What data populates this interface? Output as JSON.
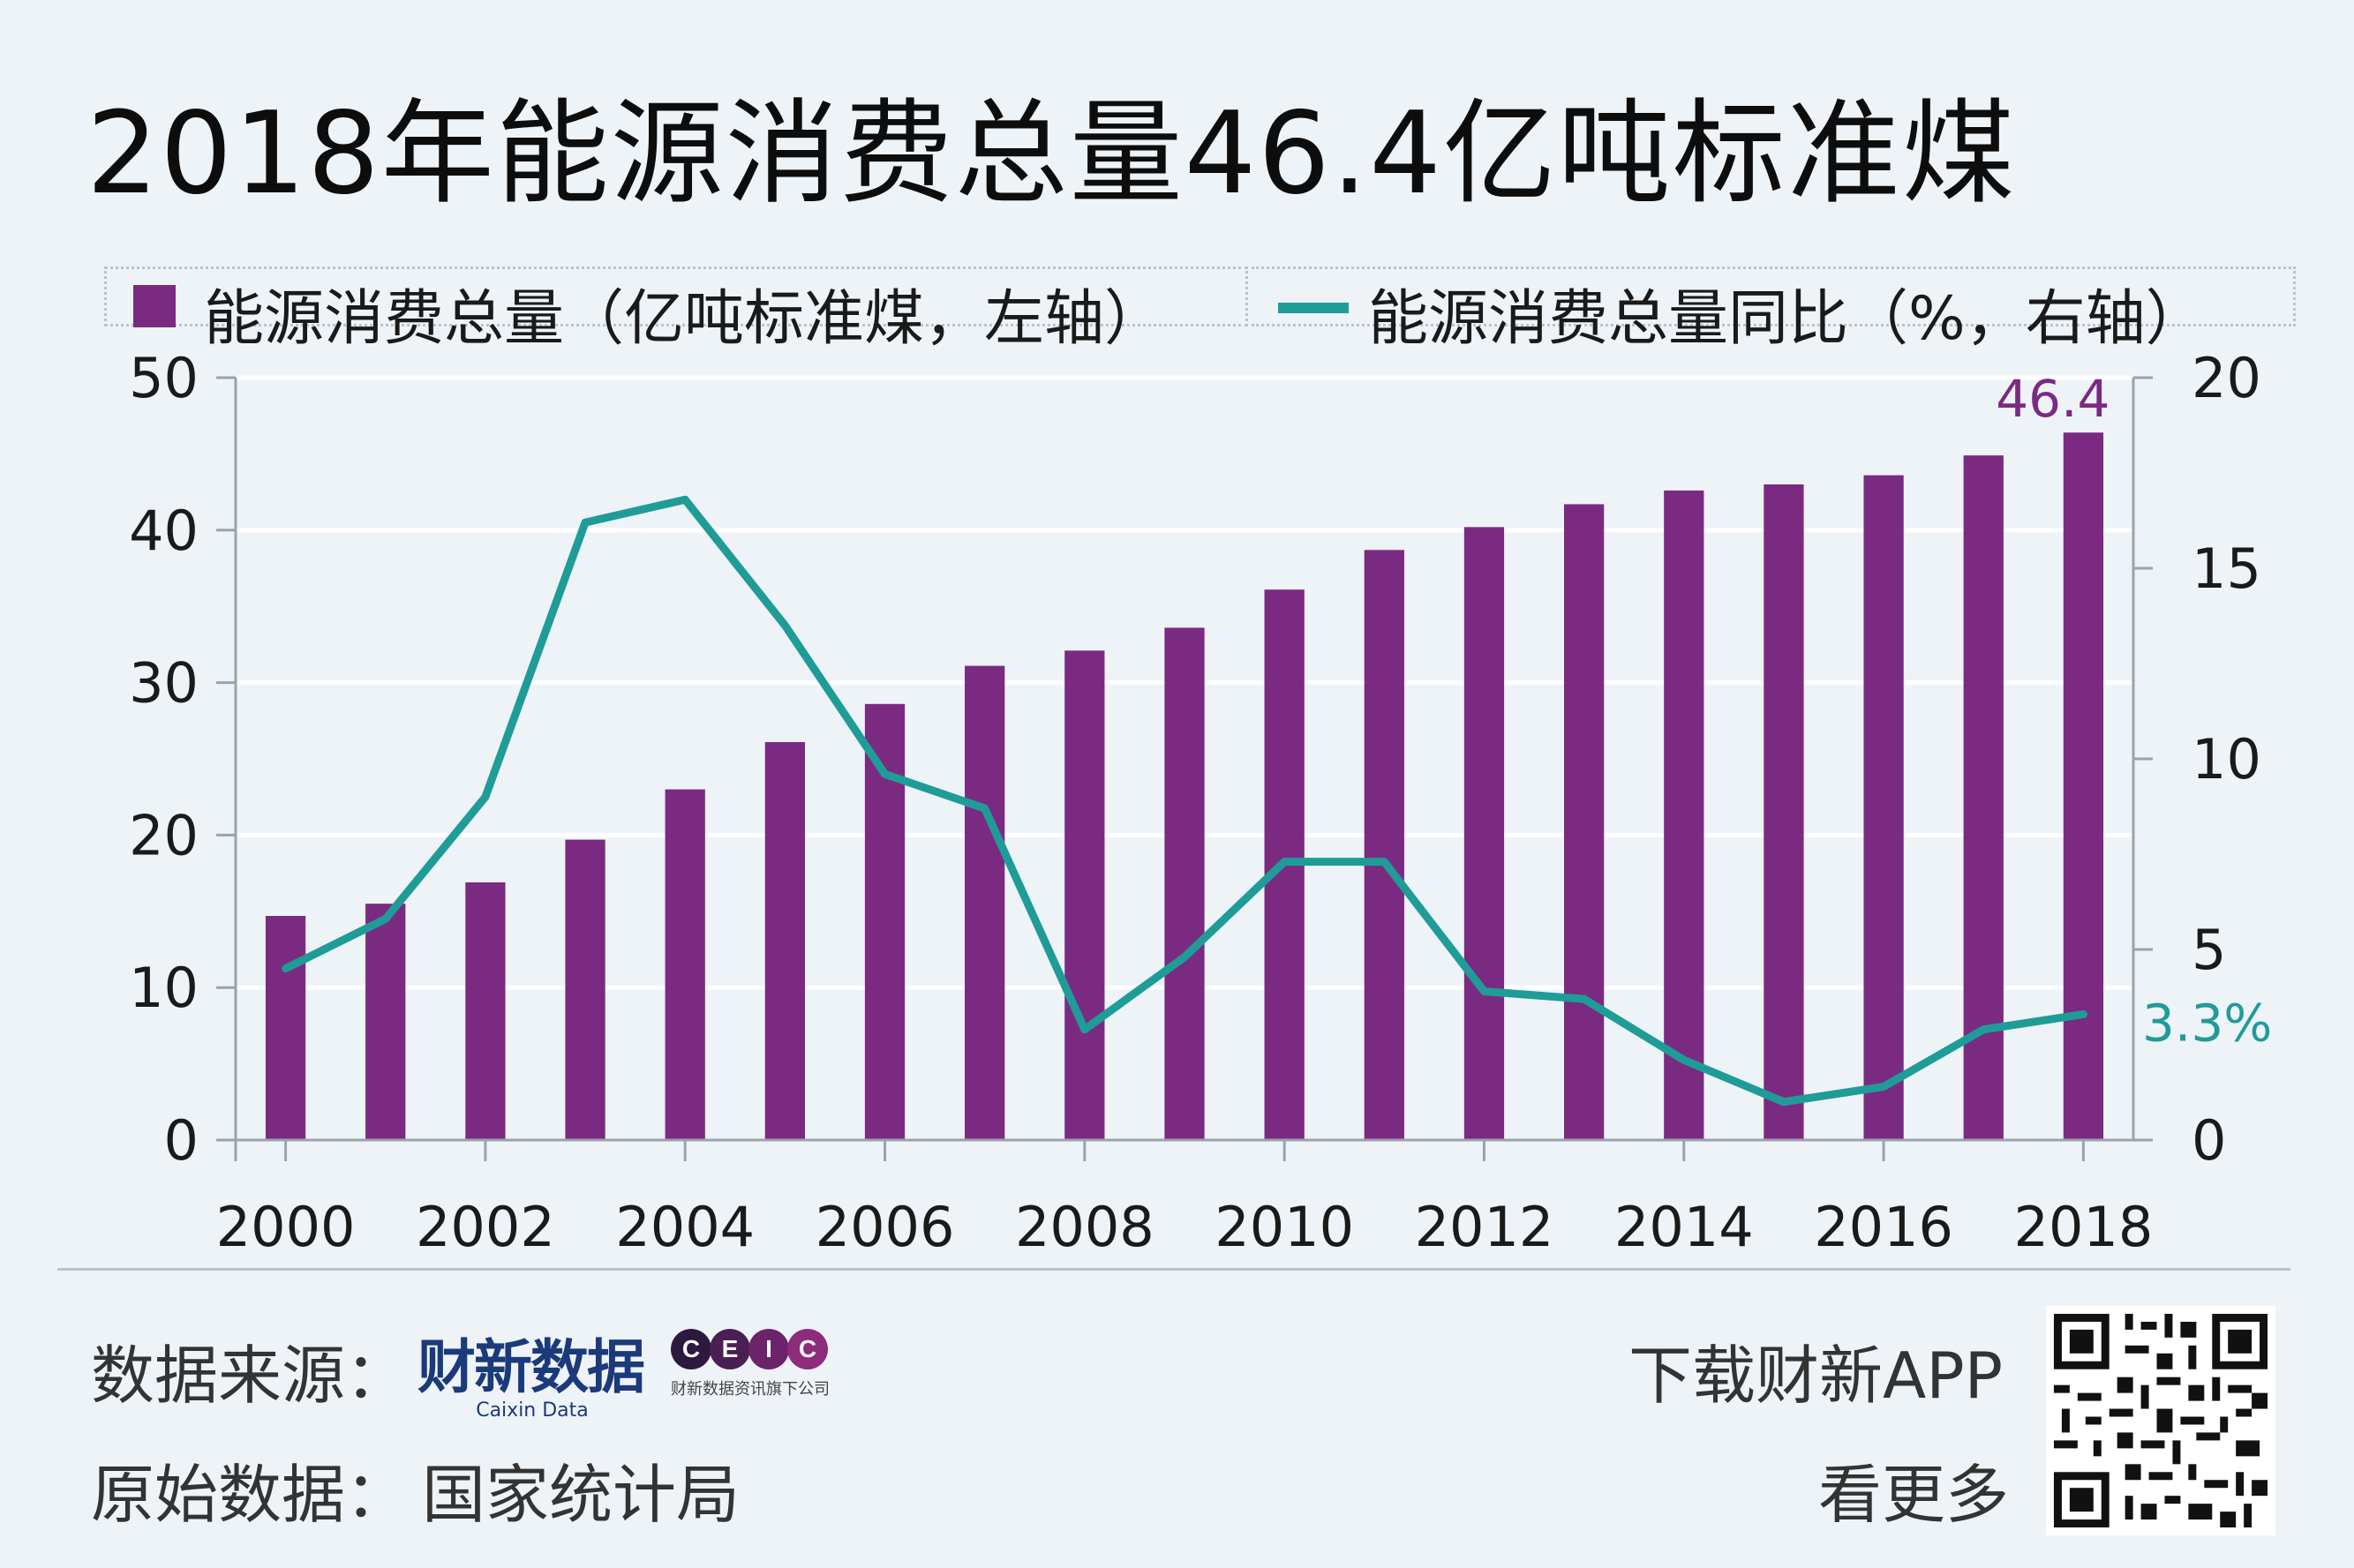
{
  "title": "2018年能源消费总量46.4亿吨标准煤",
  "legend": {
    "bar_label": "能源消费总量（亿吨标准煤，左轴）",
    "line_label": "能源消费总量同比（%，右轴）"
  },
  "colors": {
    "bar": "#7b2a82",
    "line": "#1f9c98",
    "grid": "#ffffff",
    "axis": "#9aa3ad"
  },
  "chart_data": {
    "type": "bar+line",
    "categories": [
      "2000",
      "2001",
      "2002",
      "2003",
      "2004",
      "2005",
      "2006",
      "2007",
      "2008",
      "2009",
      "2010",
      "2011",
      "2012",
      "2013",
      "2014",
      "2015",
      "2016",
      "2017",
      "2018"
    ],
    "x_tick_labels": [
      "2000",
      "2002",
      "2004",
      "2006",
      "2008",
      "2010",
      "2012",
      "2014",
      "2016",
      "2018"
    ],
    "series": [
      {
        "type": "bar",
        "axis": "left",
        "values": [
          14.7,
          15.5,
          16.9,
          19.7,
          23.0,
          26.1,
          28.6,
          31.1,
          32.1,
          33.6,
          36.1,
          38.7,
          40.2,
          41.7,
          42.6,
          43.0,
          43.6,
          44.9,
          46.4
        ]
      },
      {
        "type": "line",
        "axis": "right",
        "values": [
          4.5,
          5.8,
          9.0,
          16.2,
          16.8,
          13.5,
          9.6,
          8.7,
          2.9,
          4.8,
          7.3,
          7.3,
          3.9,
          3.7,
          2.1,
          1.0,
          1.4,
          2.9,
          3.3
        ]
      }
    ],
    "y_left": {
      "min": 0,
      "max": 50,
      "ticks": [
        0,
        10,
        20,
        30,
        40,
        50
      ]
    },
    "y_right": {
      "min": 0,
      "max": 20,
      "ticks": [
        0,
        5,
        10,
        15,
        20
      ]
    },
    "annotations": {
      "bar_last": "46.4",
      "line_last": "3.3%"
    },
    "grid": true
  },
  "footer": {
    "source_label": "数据来源：",
    "origin_label": "原始数据：",
    "origin_value": "国家统计局",
    "download_label": "下载财新APP",
    "more_label": "看更多",
    "caixin_logo_text": "财新数据",
    "caixin_logo_sub": "Caixin Data",
    "ceic_letters": [
      "C",
      "E",
      "I",
      "C"
    ],
    "ceic_sub": "财新数据资讯旗下公司"
  }
}
